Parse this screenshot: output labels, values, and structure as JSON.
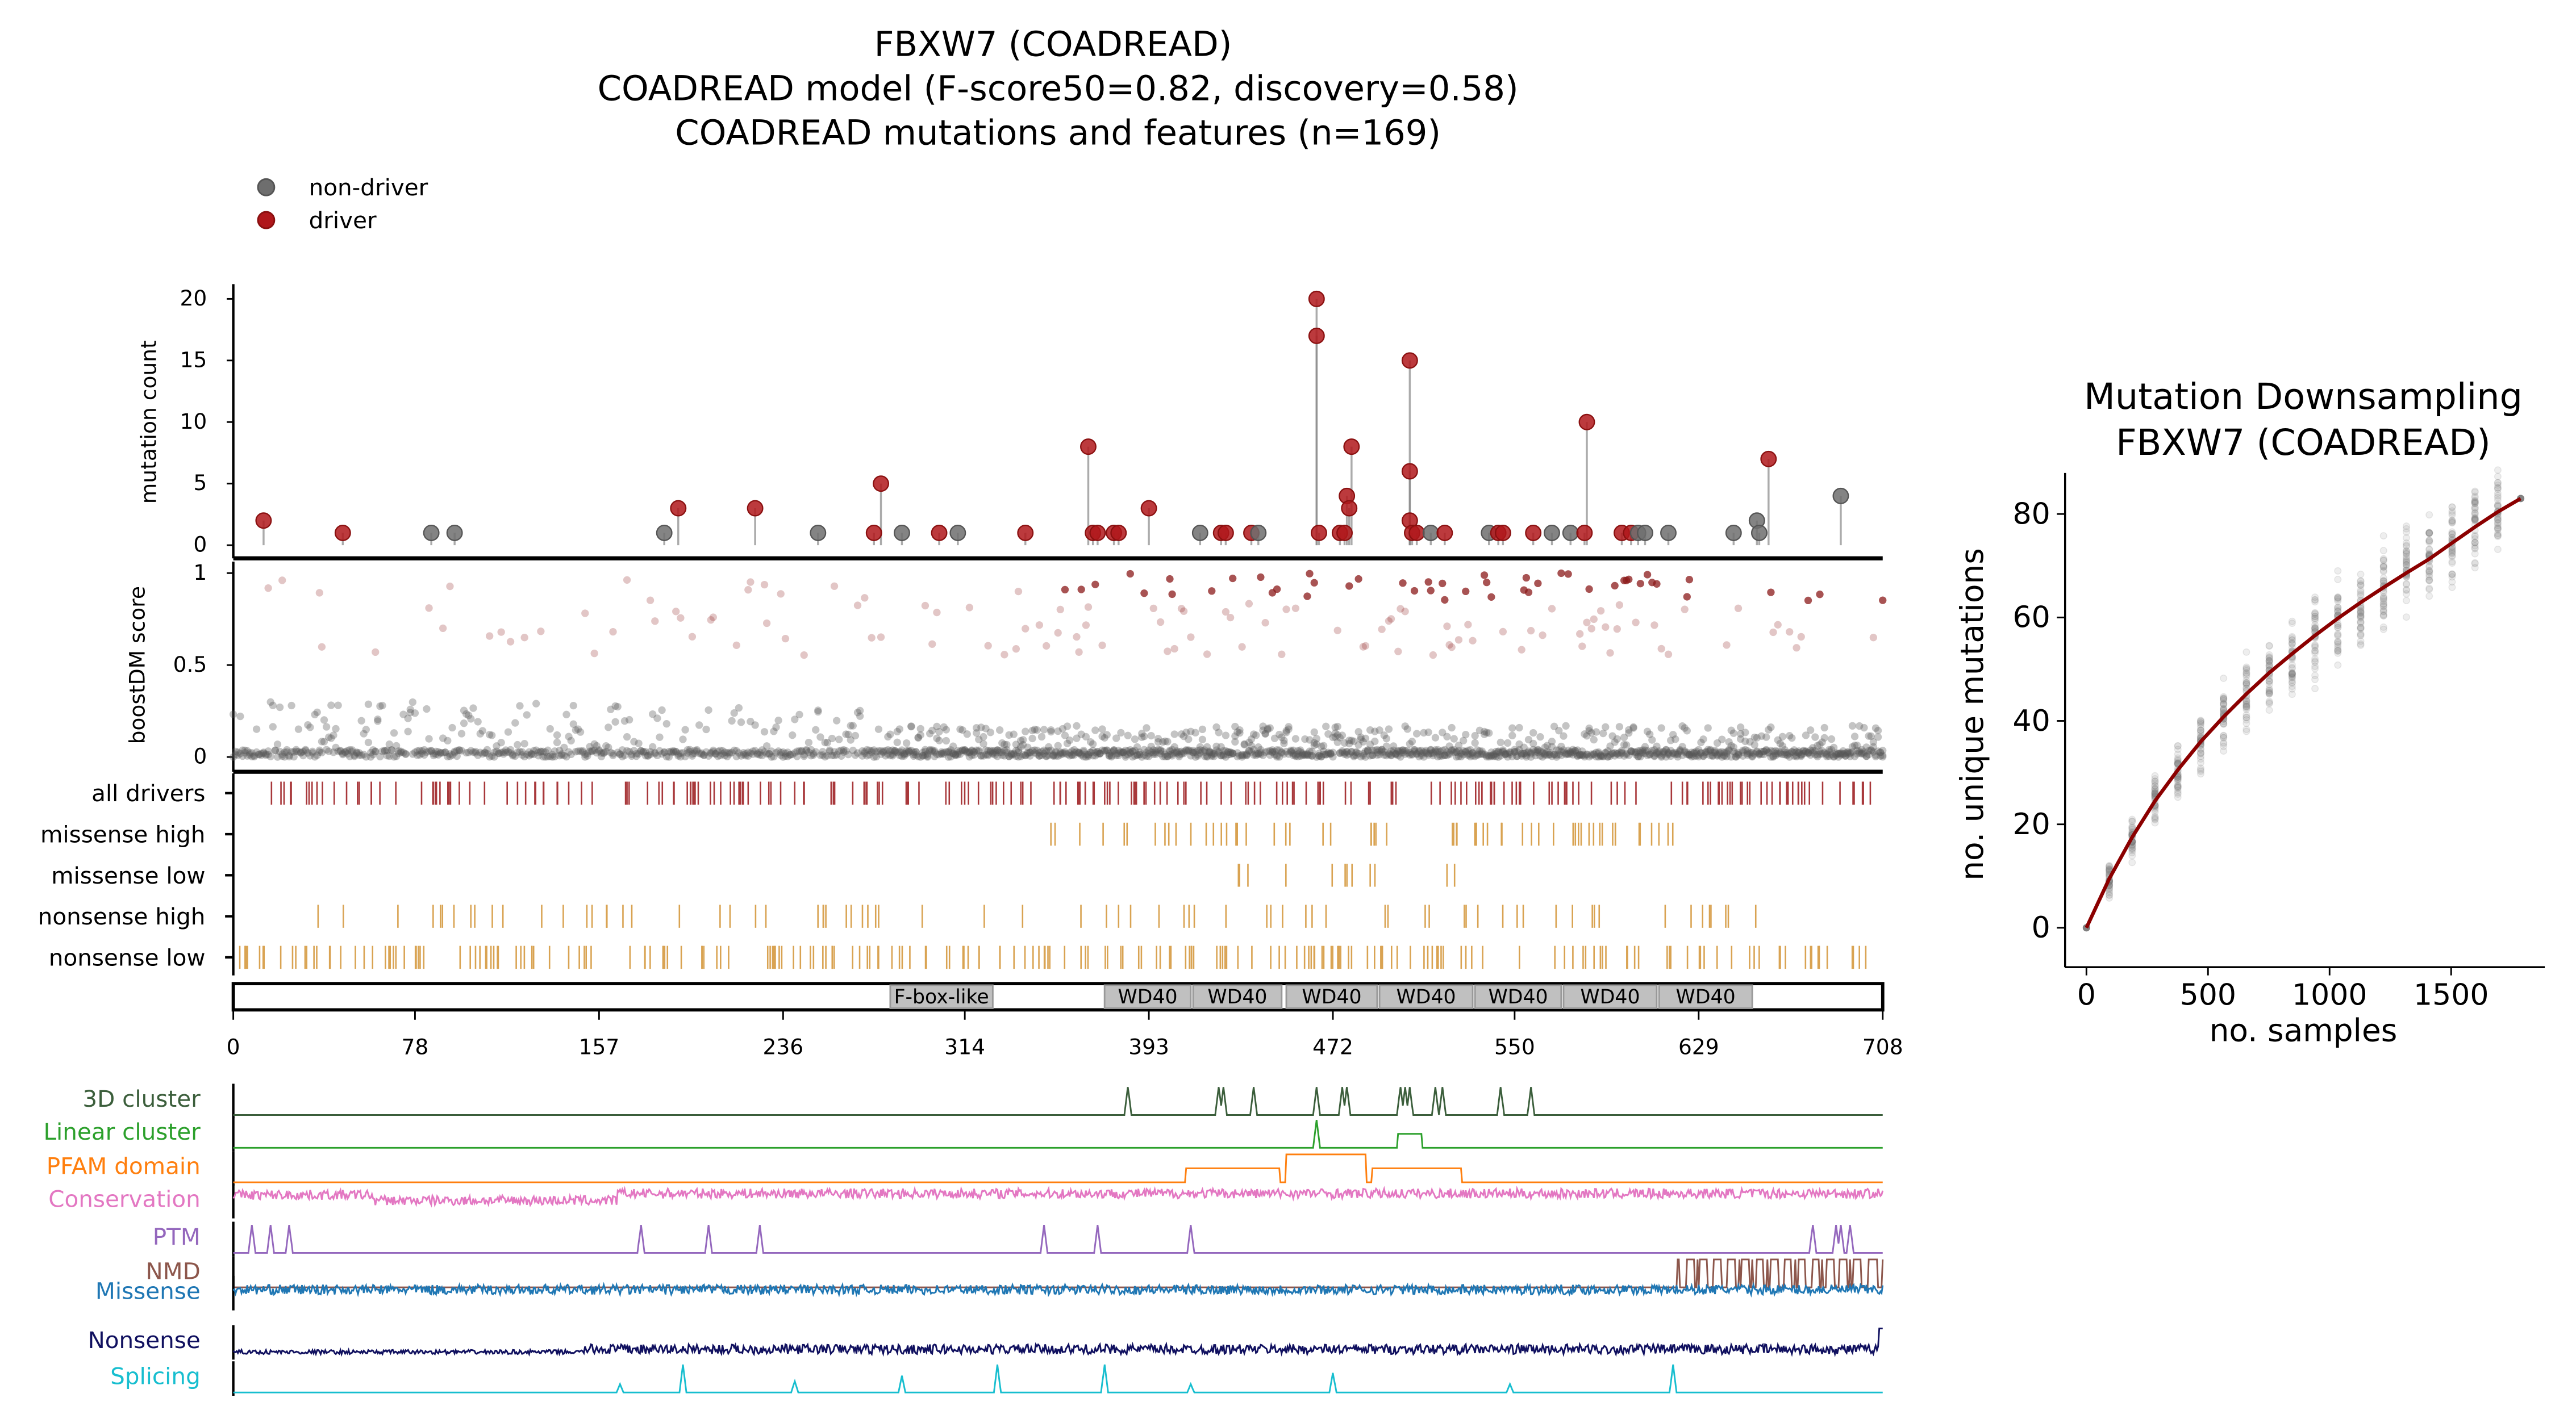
{
  "chart_data": [
    {
      "type": "lollipop",
      "title_lines": [
        "FBXW7 (COADREAD)",
        "COADREAD model (F-score50=0.82, discovery=0.58)",
        "COADREAD mutations and features (n=169)"
      ],
      "legend": [
        {
          "label": "non-driver",
          "color": "#6e6e6e"
        },
        {
          "label": "driver",
          "color": "#b0171b"
        }
      ],
      "ylabel": "mutation count",
      "yticks": [
        "0",
        "5",
        "10",
        "15",
        "20"
      ],
      "ylim": [
        0,
        21
      ],
      "xlim": [
        0,
        708
      ],
      "points": [
        [
          13,
          2,
          1
        ],
        [
          47,
          1,
          1
        ],
        [
          85,
          1,
          0
        ],
        [
          95,
          1,
          0
        ],
        [
          185,
          1,
          0
        ],
        [
          191,
          3,
          1
        ],
        [
          224,
          3,
          1
        ],
        [
          251,
          1,
          0
        ],
        [
          275,
          1,
          1
        ],
        [
          278,
          5,
          1
        ],
        [
          287,
          1,
          0
        ],
        [
          303,
          1,
          1
        ],
        [
          311,
          1,
          0
        ],
        [
          340,
          1,
          1
        ],
        [
          367,
          8,
          1
        ],
        [
          369,
          1,
          1
        ],
        [
          371,
          1,
          1
        ],
        [
          378,
          1,
          1
        ],
        [
          380,
          1,
          1
        ],
        [
          393,
          3,
          1
        ],
        [
          415,
          1,
          0
        ],
        [
          424,
          1,
          1
        ],
        [
          426,
          1,
          1
        ],
        [
          437,
          1,
          1
        ],
        [
          440,
          1,
          0
        ],
        [
          465,
          20,
          1
        ],
        [
          465,
          17,
          1
        ],
        [
          466,
          1,
          1
        ],
        [
          475,
          1,
          1
        ],
        [
          477,
          1,
          1
        ],
        [
          478,
          4,
          1
        ],
        [
          479,
          3,
          1
        ],
        [
          480,
          8,
          1
        ],
        [
          505,
          15,
          1
        ],
        [
          505,
          6,
          1
        ],
        [
          505,
          2,
          1
        ],
        [
          506,
          1,
          1
        ],
        [
          508,
          1,
          1
        ],
        [
          514,
          1,
          0
        ],
        [
          520,
          1,
          1
        ],
        [
          539,
          1,
          0
        ],
        [
          543,
          1,
          1
        ],
        [
          545,
          1,
          1
        ],
        [
          558,
          1,
          1
        ],
        [
          566,
          1,
          0
        ],
        [
          574,
          1,
          0
        ],
        [
          581,
          10,
          1
        ],
        [
          580,
          1,
          1
        ],
        [
          596,
          1,
          1
        ],
        [
          600,
          1,
          1
        ],
        [
          603,
          1,
          0
        ],
        [
          606,
          1,
          0
        ],
        [
          616,
          1,
          0
        ],
        [
          644,
          1,
          0
        ],
        [
          654,
          2,
          0
        ],
        [
          655,
          1,
          0
        ],
        [
          659,
          7,
          1
        ],
        [
          690,
          4,
          0
        ]
      ]
    },
    {
      "type": "scatter",
      "ylabel": "boostDM score",
      "yticks": [
        "0",
        "0.5",
        "1"
      ],
      "ylim": [
        0,
        1
      ],
      "note_driver_regions": [
        [
          330,
          708
        ]
      ]
    },
    {
      "type": "tracks",
      "rows": [
        {
          "label": "all drivers",
          "color": "#a8383b",
          "range": [
            0,
            708
          ],
          "count": 230
        },
        {
          "label": "missense high",
          "color": "#d9a352",
          "range": [
            333,
            624
          ],
          "count": 60
        },
        {
          "label": "missense low",
          "color": "#d9a352",
          "range": [
            415,
            545
          ],
          "count": 12
        },
        {
          "label": "nonsense high",
          "color": "#d9a352",
          "range": [
            0,
            660
          ],
          "count": 75
        },
        {
          "label": "nonsense low",
          "color": "#d9a352",
          "range": [
            0,
            708
          ],
          "count": 220
        }
      ]
    },
    {
      "type": "domains",
      "domains": [
        {
          "label": "F-box-like",
          "start": 282,
          "end": 326
        },
        {
          "label": "WD40",
          "start": 374,
          "end": 411
        },
        {
          "label": "WD40",
          "start": 412,
          "end": 450
        },
        {
          "label": "WD40",
          "start": 452,
          "end": 491
        },
        {
          "label": "WD40",
          "start": 492,
          "end": 532
        },
        {
          "label": "WD40",
          "start": 533,
          "end": 570
        },
        {
          "label": "WD40",
          "start": 571,
          "end": 611
        },
        {
          "label": "WD40",
          "start": 612,
          "end": 652
        }
      ],
      "xticks": [
        "0",
        "78",
        "157",
        "236",
        "314",
        "393",
        "472",
        "550",
        "629",
        "708"
      ]
    },
    {
      "type": "line",
      "features": [
        {
          "label": "3D cluster",
          "color": "#3b5e3b",
          "kind": "peaks",
          "peaks": [
            384,
            423,
            425,
            438,
            465,
            476,
            478,
            501,
            503,
            505,
            516,
            519,
            544,
            557
          ]
        },
        {
          "label": "Linear cluster",
          "color": "#2ca02c",
          "kind": "linear",
          "peaks": [
            465
          ],
          "plateau": [
            500,
            510
          ]
        },
        {
          "label": "PFAM domain",
          "color": "#ff7f0e",
          "kind": "steps",
          "steps": [
            [
              409,
              449,
              0.5
            ],
            [
              452,
              486,
              1
            ],
            [
              489,
              527,
              0.5
            ]
          ]
        },
        {
          "label": "Conservation",
          "color": "#e377c2",
          "kind": "noise"
        },
        {
          "label": "PTM",
          "color": "#9467bd",
          "kind": "peaks",
          "peaks": [
            8,
            16,
            24,
            175,
            204,
            226,
            348,
            371,
            411,
            678,
            688,
            690,
            694
          ]
        },
        {
          "label": "NMD",
          "color": "#8c564b",
          "kind": "nmd",
          "start": 620
        },
        {
          "label": "Missense",
          "color": "#1f77b4",
          "kind": "noise2"
        },
        {
          "label": "Nonsense",
          "color": "#10105f",
          "kind": "noise3"
        },
        {
          "label": "Splicing",
          "color": "#17becf",
          "kind": "peaks",
          "peaks": [
            166,
            193,
            241,
            287,
            328,
            374,
            411,
            472,
            548,
            618
          ],
          "heights": [
            0.3,
            1,
            0.4,
            0.6,
            1,
            1,
            0.3,
            0.7,
            0.3,
            1
          ]
        }
      ]
    },
    {
      "type": "scatter_line",
      "title_lines": [
        "Mutation Downsampling",
        "FBXW7 (COADREAD)"
      ],
      "xlabel": "no. samples",
      "ylabel": "no. unique mutations",
      "xticks": [
        "0",
        "500",
        "1000",
        "1500"
      ],
      "yticks": [
        "0",
        "20",
        "40",
        "60",
        "80"
      ],
      "xlim": [
        -100,
        1880
      ],
      "ylim": [
        -4,
        88
      ],
      "x": [
        0,
        94,
        188,
        282,
        376,
        470,
        564,
        658,
        752,
        846,
        940,
        1034,
        1128,
        1222,
        1316,
        1410,
        1504,
        1598,
        1692,
        1786
      ],
      "y": [
        0,
        9.5,
        17.5,
        24.5,
        30.5,
        36,
        40.8,
        45.2,
        49.3,
        53,
        56.5,
        59.8,
        62.9,
        65.8,
        68.6,
        71.3,
        74.4,
        77.5,
        80.4,
        83
      ],
      "line_color": "#8b0000"
    }
  ]
}
